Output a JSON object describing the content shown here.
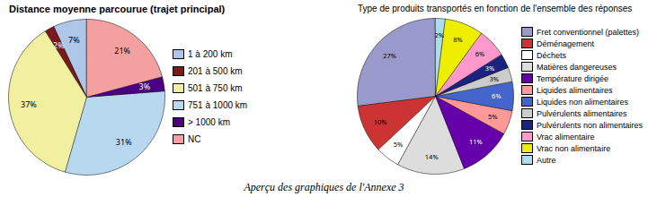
{
  "chart_data": [
    {
      "type": "pie",
      "title": "Distance moyenne parcourue (trajet principal)",
      "categories": [
        "1 à 200 km",
        "201 à 500 km",
        "501 à 750 km",
        "751 à 1000 km",
        "> 1000 km",
        "NC"
      ],
      "values": [
        7,
        2,
        37,
        31,
        3,
        21
      ],
      "value_labels": [
        "7%",
        "2%",
        "37%",
        "31%",
        "3%",
        "21%"
      ],
      "colors": [
        "#aec6e8",
        "#7b1a1a",
        "#f0f0a0",
        "#b8d8f0",
        "#4b0082",
        "#f4a0a0"
      ],
      "data_labels": true,
      "legend": "right"
    },
    {
      "type": "pie",
      "title": "Type de produits transportés en fonction de l'ensemble des réponses",
      "categories": [
        "Fret conventionnel (palettes)",
        "Déménagement",
        "Déchets",
        "Matières dangereuses",
        "Température dirigée",
        "Liquides alimentaires",
        "Liquides non alimentaires",
        "Pulvérulents alimentaires",
        "Pulvérulents non alimentaires",
        "Vrac alimentaire",
        "Vrac non alimentaire",
        "Autre"
      ],
      "values": [
        27,
        10,
        5,
        14,
        11,
        5,
        6,
        3,
        3,
        6,
        8,
        2
      ],
      "value_labels": [
        "27%",
        "10%",
        "5%",
        "14%",
        "11%",
        "5%",
        "6%",
        "3%",
        "3%",
        "6%",
        "8%",
        "2%"
      ],
      "colors": [
        "#9999cc",
        "#cc3333",
        "#ffffff",
        "#dddddd",
        "#6600aa",
        "#ff9999",
        "#4466cc",
        "#cccccc",
        "#1a237e",
        "#ff99cc",
        "#eeee00",
        "#aaddee"
      ],
      "data_labels": true,
      "legend": "right"
    }
  ],
  "caption": "Aperçu des graphiques de l'Annexe 3"
}
